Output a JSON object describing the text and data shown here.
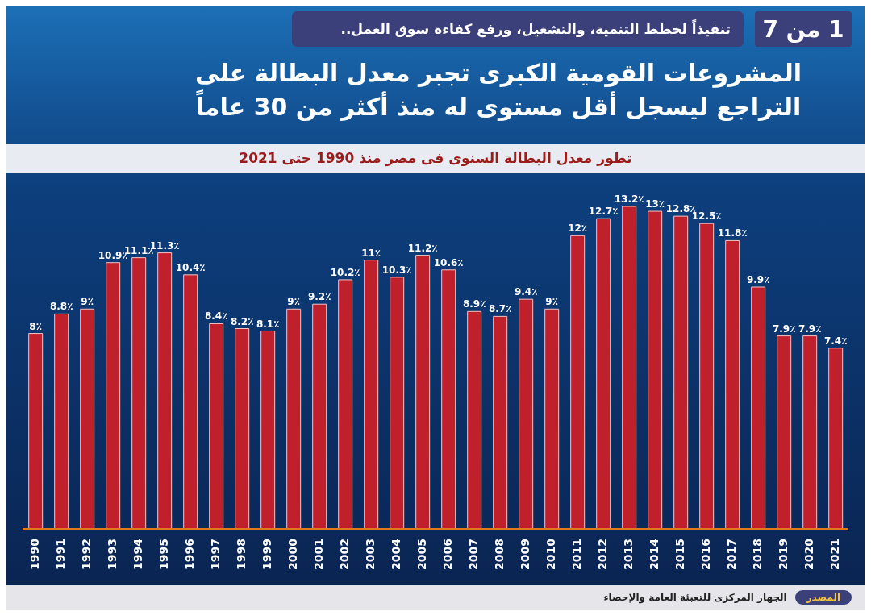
{
  "chart_data": {
    "type": "bar",
    "title": "المشروعات القومية الكبرى تجبر معدل البطالة على التراجع ليسجل أقل مستوى له منذ أكثر من 30 عاماً",
    "subtitle": "تطور معدل البطالة السنوى فى مصر منذ 1990 حتى 2021",
    "annotations": [
      "تنفيذاً لخطط التنمية، والتشغيل، ورفع كفاءة سوق العمل..",
      "1 من 7",
      "المصدر",
      "الجهاز المركزى للتعبئة العامة والإحصاء"
    ],
    "categories": [
      "1990",
      "1991",
      "1992",
      "1993",
      "1994",
      "1995",
      "1996",
      "1997",
      "1998",
      "1999",
      "2000",
      "2001",
      "2002",
      "2003",
      "2004",
      "2005",
      "2006",
      "2007",
      "2008",
      "2009",
      "2010",
      "2011",
      "2012",
      "2013",
      "2014",
      "2015",
      "2016",
      "2017",
      "2018",
      "2019",
      "2020",
      "2021"
    ],
    "values": [
      8,
      8.8,
      9,
      10.9,
      11.1,
      11.3,
      10.4,
      8.4,
      8.2,
      8.1,
      9,
      9.2,
      10.2,
      11,
      10.3,
      11.2,
      10.6,
      8.9,
      8.7,
      9.4,
      9,
      12,
      12.7,
      13.2,
      13,
      12.8,
      12.5,
      11.8,
      9.9,
      7.9,
      7.9,
      7.4
    ],
    "value_labels": [
      "8٪",
      "8.8٪",
      "9٪",
      "10.9٪",
      "11.1٪",
      "11.3٪",
      "10.4٪",
      "8.4٪",
      "8.2٪",
      "8.1٪",
      "9٪",
      "9.2٪",
      "10.2٪",
      "11٪",
      "10.3٪",
      "11.2٪",
      "10.6٪",
      "8.9٪",
      "8.7٪",
      "9.4٪",
      "9٪",
      "12٪",
      "12.7٪",
      "13.2٪",
      "13٪",
      "12.8٪",
      "12.5٪",
      "11.8٪",
      "9.9٪",
      "7.9٪",
      "7.9٪",
      "7.4٪"
    ],
    "color": "#c0202c",
    "grid": false,
    "legend": false
  }
}
